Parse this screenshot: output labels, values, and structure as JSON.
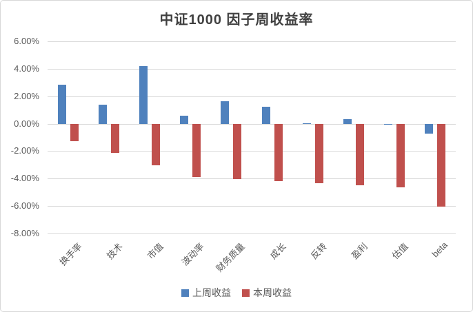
{
  "chart_title": "中证1000 因子周收益率",
  "colors": {
    "last_week_blue": "#4F81BD",
    "this_week_red": "#C0504D",
    "gridline": "#d9d9d9",
    "axis_text": "#595959",
    "title_text": "#404040"
  },
  "chart_data": {
    "type": "bar",
    "title": "中证1000 因子周收益率",
    "categories": [
      "换手率",
      "技术",
      "市值",
      "波动率",
      "财务质量",
      "成长",
      "反转",
      "盈利",
      "估值",
      "beta"
    ],
    "series": [
      {
        "key": "last-week",
        "name": "上周收益",
        "color": "#4F81BD",
        "values": [
          2.85,
          1.4,
          4.2,
          0.6,
          1.65,
          1.25,
          0.05,
          0.35,
          -0.05,
          -0.7
        ]
      },
      {
        "key": "this-week",
        "name": "本周收益",
        "color": "#C0504D",
        "values": [
          -1.25,
          -2.1,
          -3.0,
          -3.85,
          -4.0,
          -4.15,
          -4.3,
          -4.45,
          -4.6,
          -6.0
        ]
      }
    ],
    "xlabel": "",
    "ylabel": "",
    "ylim": [
      -8,
      6
    ],
    "ytick_step": 2,
    "ytick_labels": [
      "6.00%",
      "4.00%",
      "2.00%",
      "0.00%",
      "-2.00%",
      "-4.00%",
      "-6.00%",
      "-8.00%"
    ],
    "grid": true,
    "legend_position": "bottom"
  }
}
